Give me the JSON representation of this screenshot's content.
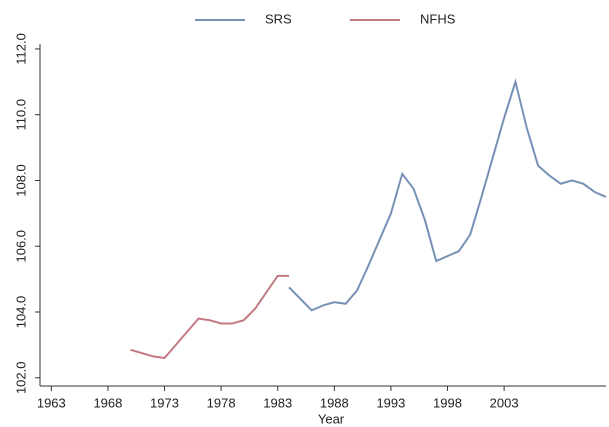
{
  "chart_data": {
    "type": "line",
    "x_label": "Year",
    "xlim": [
      1962,
      2012
    ],
    "xticks": [
      1963,
      1968,
      1973,
      1978,
      1983,
      1988,
      1993,
      1998,
      2003
    ],
    "ylim": [
      101.75,
      112.15
    ],
    "yticks": [
      {
        "value": 102,
        "label": "102.0"
      },
      {
        "value": 104,
        "label": "104.0"
      },
      {
        "value": 106,
        "label": "106.0"
      },
      {
        "value": 108,
        "label": "108.0"
      },
      {
        "value": 110,
        "label": "110.0"
      },
      {
        "value": 112,
        "label": "112.0"
      }
    ],
    "legend": "top",
    "series": [
      {
        "name": "SRS",
        "color": "#7890b6",
        "x": [
          1984,
          1985,
          1986,
          1987,
          1988,
          1989,
          1990,
          1991,
          1992,
          1993,
          1994,
          1995,
          1996,
          1997,
          1998,
          1999,
          2000,
          2001,
          2002,
          2003,
          2004,
          2005,
          2006,
          2007,
          2008,
          2009,
          2010,
          2011,
          2012
        ],
        "values": [
          104.75,
          104.4,
          104.05,
          104.2,
          104.3,
          104.25,
          104.65,
          105.4,
          106.2,
          107.0,
          108.2,
          107.75,
          106.8,
          105.55,
          105.7,
          105.85,
          106.35,
          107.5,
          108.7,
          109.9,
          111.0,
          109.6,
          108.45,
          108.15,
          107.9,
          108.0,
          107.9,
          107.65,
          107.5
        ]
      },
      {
        "name": "NFHS",
        "color": "#c47a82",
        "x": [
          1970,
          1971,
          1972,
          1973,
          1974,
          1975,
          1976,
          1977,
          1978,
          1979,
          1980,
          1981,
          1982,
          1983,
          1984
        ],
        "values": [
          102.85,
          102.75,
          102.65,
          102.6,
          103.0,
          103.4,
          103.8,
          103.75,
          103.65,
          103.65,
          103.75,
          104.1,
          104.6,
          105.1,
          105.1
        ]
      }
    ]
  }
}
